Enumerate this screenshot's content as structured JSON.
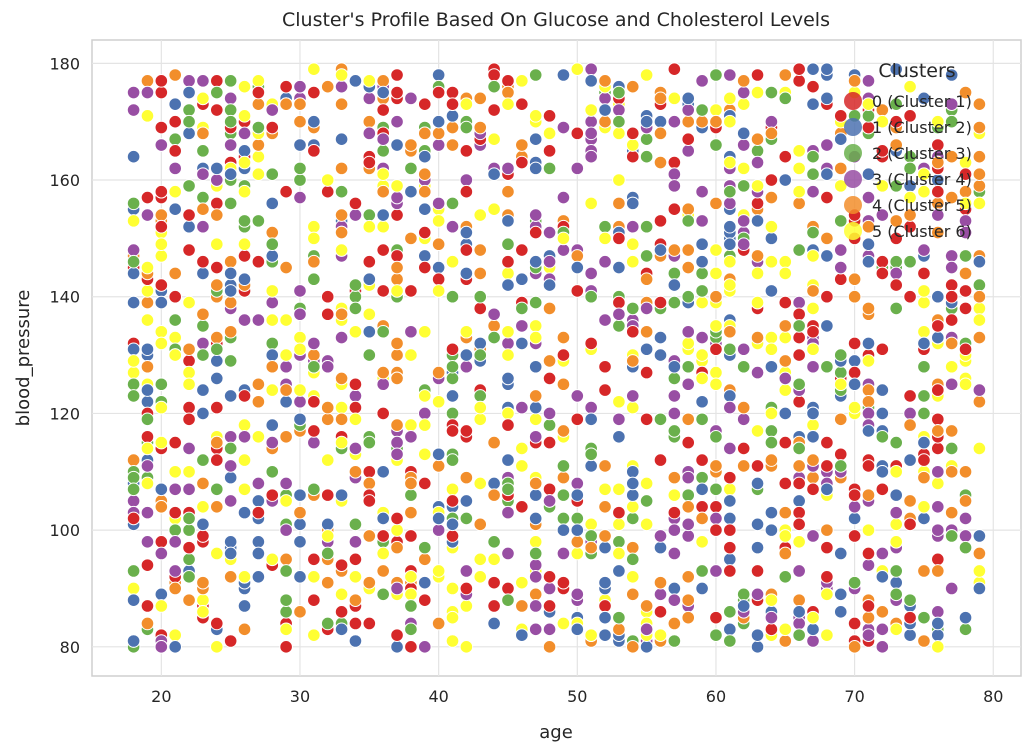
{
  "chart_data": {
    "type": "scatter",
    "title": "Cluster's Profile Based On Glucose and Cholesterol Levels",
    "xlabel": "age",
    "ylabel": "blood_pressure",
    "xlim": [
      15,
      82
    ],
    "ylim": [
      75,
      184
    ],
    "xticks": [
      20,
      30,
      40,
      50,
      60,
      70,
      80
    ],
    "yticks": [
      80,
      100,
      120,
      140,
      160,
      180
    ],
    "grid": true,
    "legend": {
      "title": "Clusters",
      "placement": "top-right"
    },
    "x_range": [
      18,
      79
    ],
    "y_range": [
      80,
      179
    ],
    "point_count": 2000,
    "series": [
      {
        "name": "0 (Cluster 1)",
        "color": "#d62728"
      },
      {
        "name": "1 (Cluster 2)",
        "color": "#4c72b0"
      },
      {
        "name": "2 (Cluster 3)",
        "color": "#6ab04c"
      },
      {
        "name": "3 (Cluster 4)",
        "color": "#984ea3"
      },
      {
        "name": "4 (Cluster 5)",
        "color": "#f28e2b"
      },
      {
        "name": "5 (Cluster 6)",
        "color": "#ffff33"
      }
    ]
  }
}
